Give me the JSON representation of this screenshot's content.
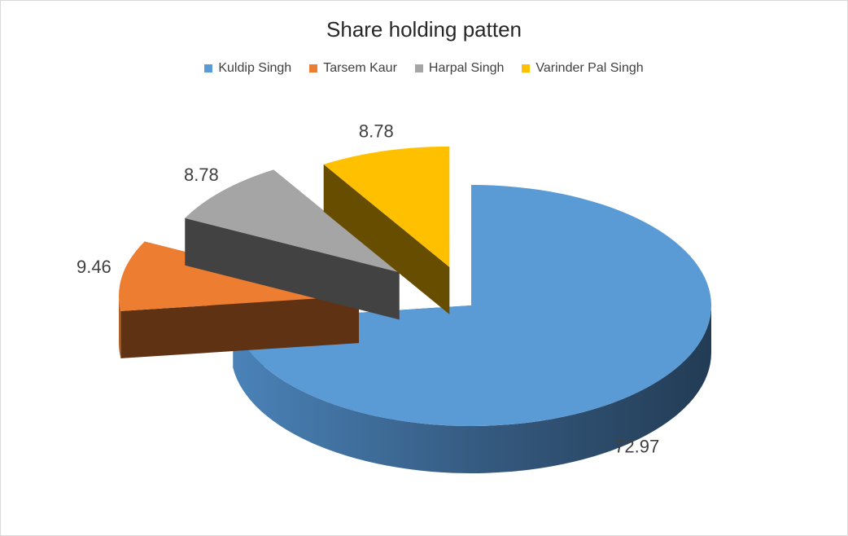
{
  "chart_data": {
    "type": "pie",
    "title": "Share holding patten",
    "categories": [
      "Kuldip Singh",
      "Tarsem Kaur",
      "Harpal Singh",
      "Varinder Pal Singh"
    ],
    "values": [
      72.97,
      9.46,
      8.78,
      8.78
    ],
    "data_labels": [
      "72.97",
      "9.46",
      "8.78",
      "8.78"
    ],
    "legend_position": "top",
    "exploded_slices": [
      "Tarsem Kaur",
      "Harpal Singh",
      "Varinder Pal Singh"
    ],
    "style": "3d-exploded"
  },
  "colors": {
    "Kuldip Singh": "#5b9bd5",
    "Tarsem Kaur": "#ed7d31",
    "Harpal Singh": "#a5a5a5",
    "Varinder Pal Singh": "#ffc000"
  }
}
